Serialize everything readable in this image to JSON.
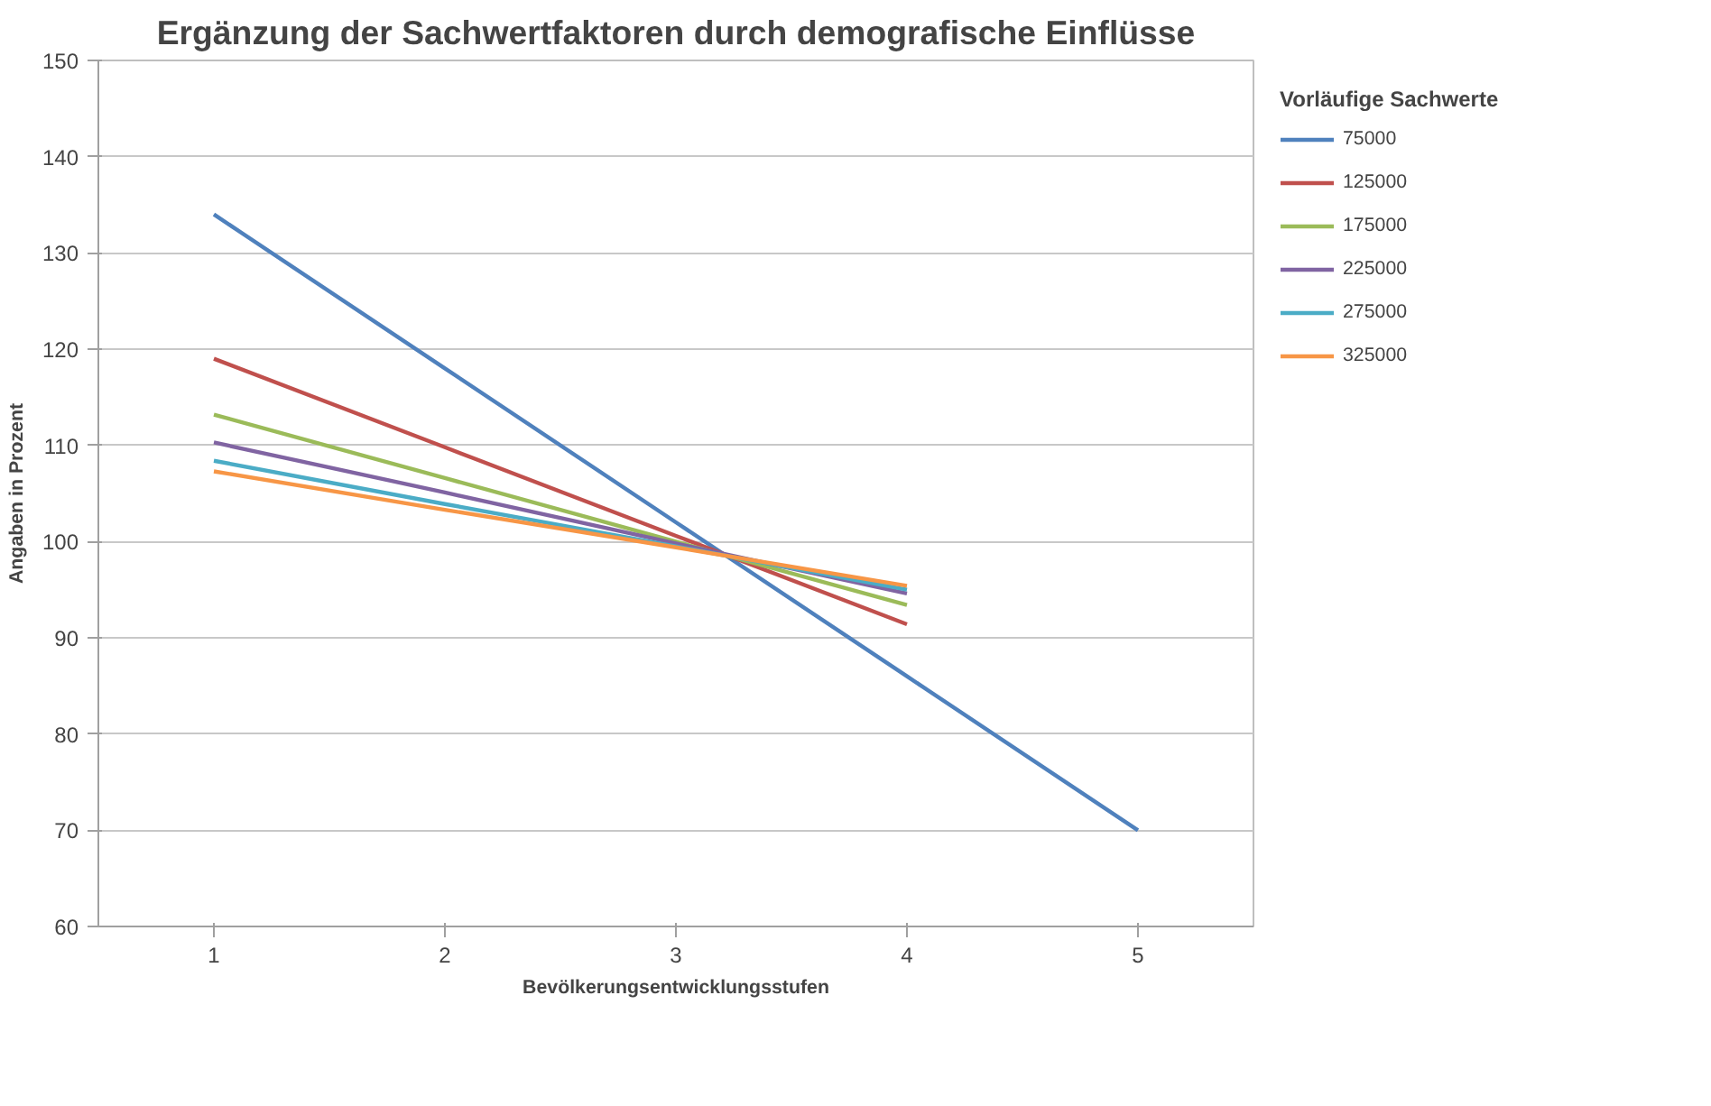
{
  "chart_data": {
    "type": "line",
    "title": "Ergänzung der Sachwertfaktoren durch demografische Einflüsse",
    "xlabel": "Bevölkerungsentwicklungsstufen",
    "ylabel": "Angaben in Prozent",
    "legend_title": "Vorläufige Sachwerte",
    "categories": [
      "1",
      "2",
      "3",
      "4",
      "5"
    ],
    "series": [
      {
        "name": "75000",
        "color": "#4f81bd",
        "values": [
          134,
          118,
          102,
          86,
          70
        ]
      },
      {
        "name": "125000",
        "color": "#c0504d",
        "values": [
          119,
          109.8,
          100.6,
          91.4,
          null
        ]
      },
      {
        "name": "175000",
        "color": "#9bbb59",
        "values": [
          113.2,
          106.6,
          100,
          93.4,
          null
        ]
      },
      {
        "name": "225000",
        "color": "#8064a2",
        "values": [
          110.3,
          105.1,
          99.8,
          94.6,
          null
        ]
      },
      {
        "name": "275000",
        "color": "#4bacc6",
        "values": [
          108.4,
          103.9,
          99.5,
          95.0,
          null
        ]
      },
      {
        "name": "325000",
        "color": "#f79646",
        "values": [
          107.3,
          103.3,
          99.4,
          95.4,
          null
        ]
      }
    ],
    "ylim": [
      60,
      150
    ],
    "yticks": [
      60,
      70,
      80,
      90,
      100,
      110,
      120,
      130,
      140,
      150
    ],
    "grid": "y",
    "legend": "right",
    "marker": "none",
    "line_style": "solid"
  }
}
